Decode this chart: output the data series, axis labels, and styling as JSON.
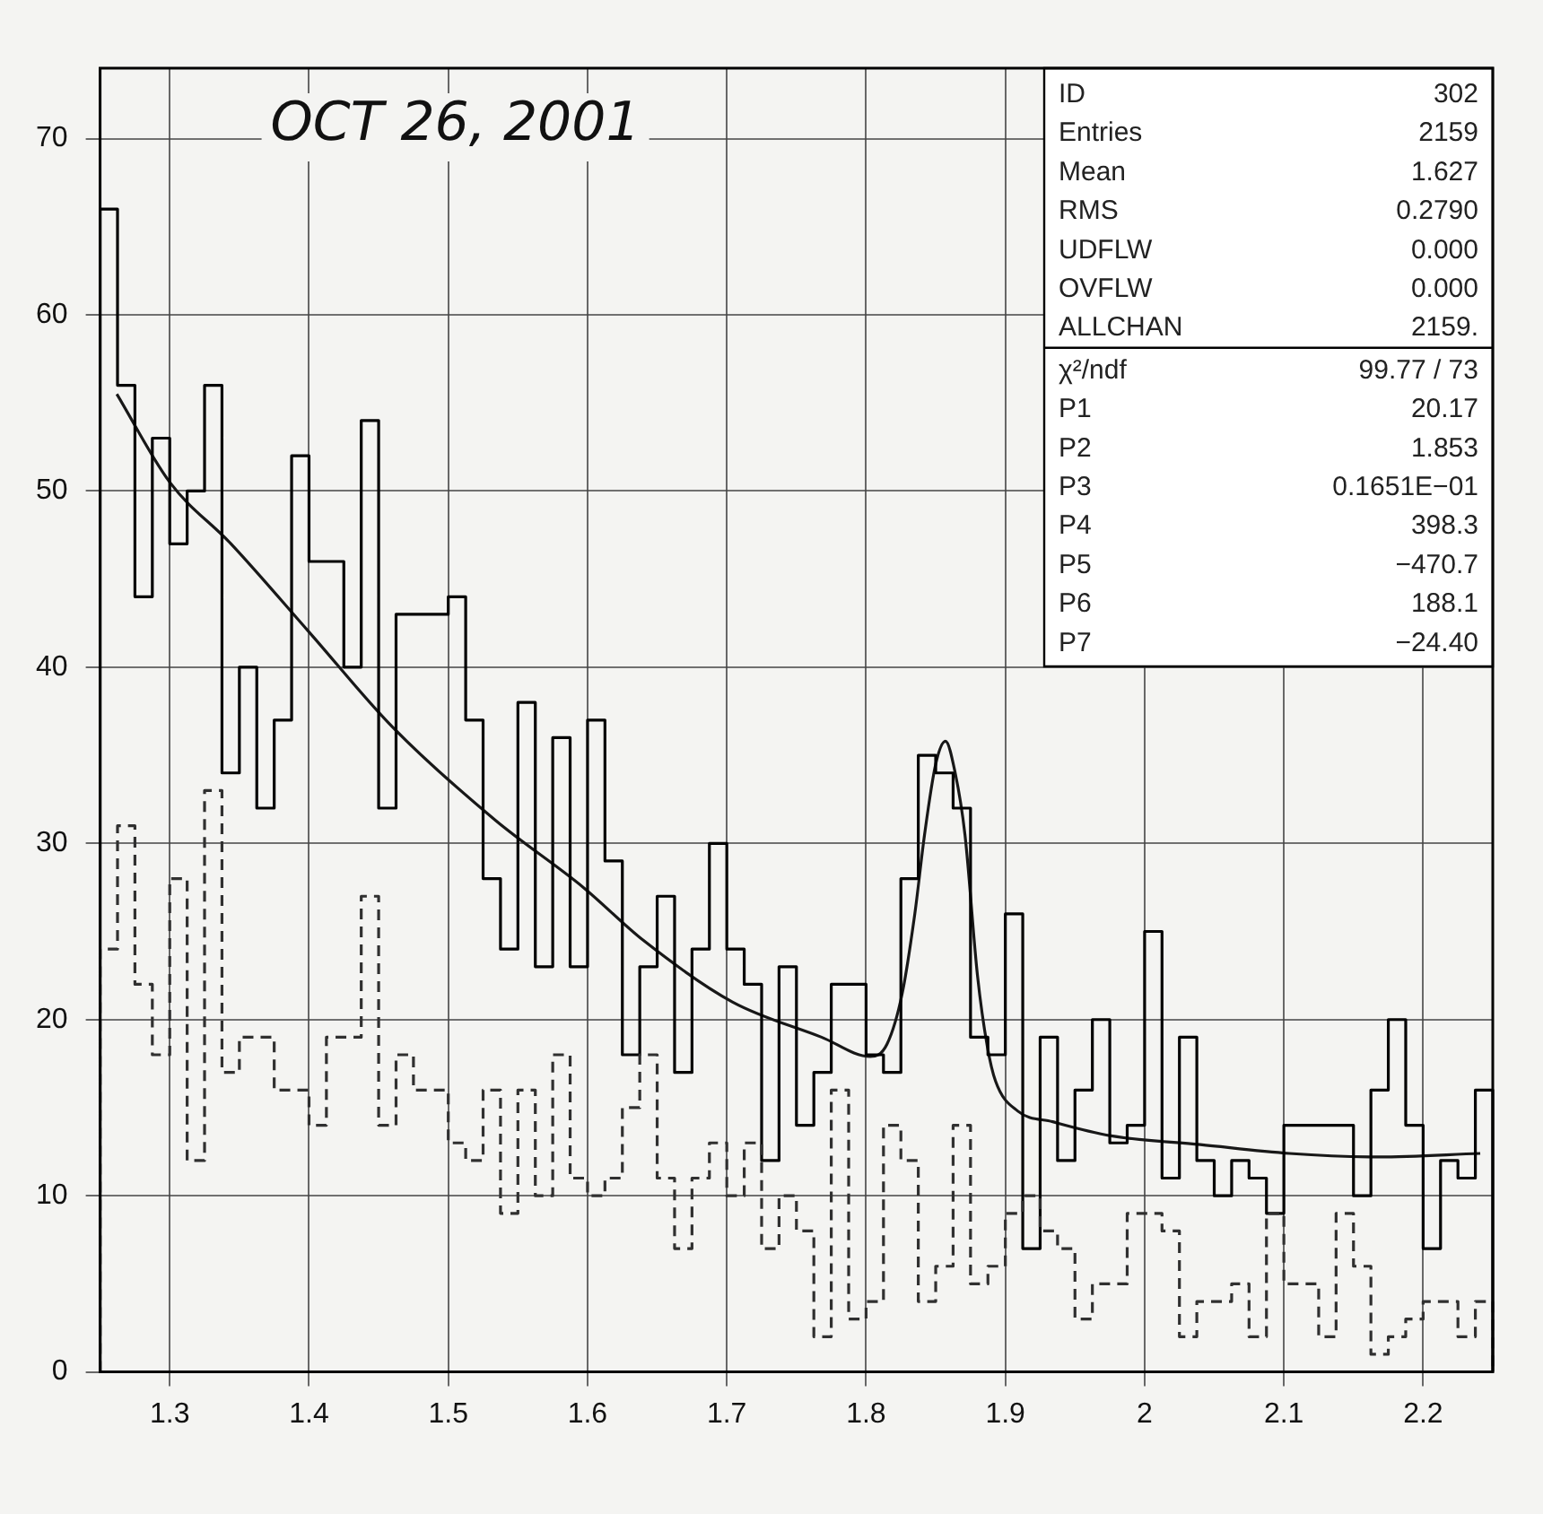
{
  "chart_data": {
    "type": "histogram",
    "bins": [
      1.25,
      1.2625,
      1.275,
      1.2875,
      1.3,
      1.3125,
      1.325,
      1.3375,
      1.35,
      1.3625,
      1.375,
      1.3875,
      1.4,
      1.4125,
      1.425,
      1.4375,
      1.45,
      1.4625,
      1.475,
      1.4875,
      1.5,
      1.5125,
      1.525,
      1.5375,
      1.55,
      1.5625,
      1.575,
      1.5875,
      1.6,
      1.6125,
      1.625,
      1.6375,
      1.65,
      1.6625,
      1.675,
      1.6875,
      1.7,
      1.7125,
      1.725,
      1.7375,
      1.75,
      1.7625,
      1.775,
      1.7875,
      1.8,
      1.8125,
      1.825,
      1.8375,
      1.85,
      1.8625,
      1.875,
      1.8875,
      1.9,
      1.9125,
      1.925,
      1.9375,
      1.95,
      1.9625,
      1.975,
      1.9875,
      2.0,
      2.0125,
      2.025,
      2.0375,
      2.05,
      2.0625,
      2.075,
      2.0875,
      2.1,
      2.1125,
      2.125,
      2.1375,
      2.15,
      2.1625,
      2.175,
      2.1875,
      2.2,
      2.2125,
      2.225,
      2.2375,
      2.25
    ],
    "series": [
      {
        "color": "#000000",
        "line_style": "solid",
        "values": [
          66,
          56,
          44,
          53,
          47,
          50,
          56,
          34,
          40,
          32,
          37,
          52,
          46,
          46,
          40,
          54,
          32,
          43,
          43,
          43,
          44,
          37,
          28,
          24,
          38,
          23,
          36,
          23,
          37,
          29,
          18,
          23,
          27,
          17,
          24,
          30,
          24,
          22,
          12,
          23,
          14,
          17,
          22,
          22,
          18,
          17,
          28,
          35,
          34,
          32,
          19,
          18,
          26,
          7,
          19,
          12,
          16,
          20,
          13,
          14,
          25,
          11,
          19,
          12,
          10,
          12,
          11,
          9,
          14,
          14,
          14,
          14,
          10,
          16,
          20,
          14,
          7,
          12,
          11,
          16
        ]
      },
      {
        "color": "#303030",
        "line_style": "dashed",
        "values": [
          24,
          31,
          22,
          18,
          28,
          12,
          33,
          17,
          19,
          19,
          16,
          16,
          14,
          19,
          19,
          27,
          14,
          18,
          16,
          16,
          13,
          12,
          16,
          9,
          16,
          10,
          18,
          11,
          10,
          11,
          15,
          18,
          11,
          7,
          11,
          13,
          10,
          13,
          7,
          10,
          8,
          2,
          16,
          3,
          4,
          14,
          12,
          4,
          6,
          14,
          5,
          6,
          9,
          10,
          8,
          7,
          3,
          5,
          5,
          9,
          9,
          8,
          2,
          4,
          4,
          5,
          2,
          9,
          5,
          5,
          2,
          9,
          6,
          1,
          2,
          3,
          4,
          4,
          2,
          4
        ]
      },
      {
        "type": "line",
        "color": "#181818",
        "line_style": "solid",
        "x": [
          1.262,
          1.3,
          1.344,
          1.4,
          1.46,
          1.534,
          1.597,
          1.64,
          1.704,
          1.768,
          1.803,
          1.815,
          1.826,
          1.835,
          1.842,
          1.85,
          1.857,
          1.864,
          1.871,
          1.88,
          1.887,
          1.893,
          1.909,
          1.934,
          1.976,
          2.04,
          2.104,
          2.168,
          2.241
        ],
        "values": [
          55.5,
          50.5,
          47,
          42,
          36.6,
          31.3,
          27.5,
          24.5,
          21,
          19,
          17.9,
          18.6,
          21.5,
          26,
          30.5,
          34.5,
          35.8,
          34,
          30.5,
          22.5,
          18.5,
          16.5,
          14.8,
          14.2,
          13.4,
          12.9,
          12.4,
          12.2,
          12.4
        ]
      }
    ],
    "xlim": [
      1.25,
      2.25
    ],
    "xticks": [
      1.3,
      1.4,
      1.5,
      1.6,
      1.7,
      1.8,
      1.9,
      2,
      2.1,
      2.2
    ],
    "ylim": [
      0,
      74
    ],
    "yticks": [
      0,
      10,
      20,
      30,
      40,
      50,
      60,
      70
    ],
    "grid": true,
    "legend": false,
    "marker": "none",
    "annotations": [
      "OCT 26, 2001",
      "ID 302",
      "Entries 2159",
      "Mean 1.627",
      "RMS 0.2790",
      "UDFLW 0.000",
      "OVFLW 0.000",
      "ALLCHAN 2159.",
      "χ²/ndf 99.77 / 73",
      "P1 20.17",
      "P2 1.853",
      "P3 0.1651E−01",
      "P4 398.3",
      "P5 −470.7",
      "P6 188.1",
      "P7 −24.40"
    ]
  }
}
